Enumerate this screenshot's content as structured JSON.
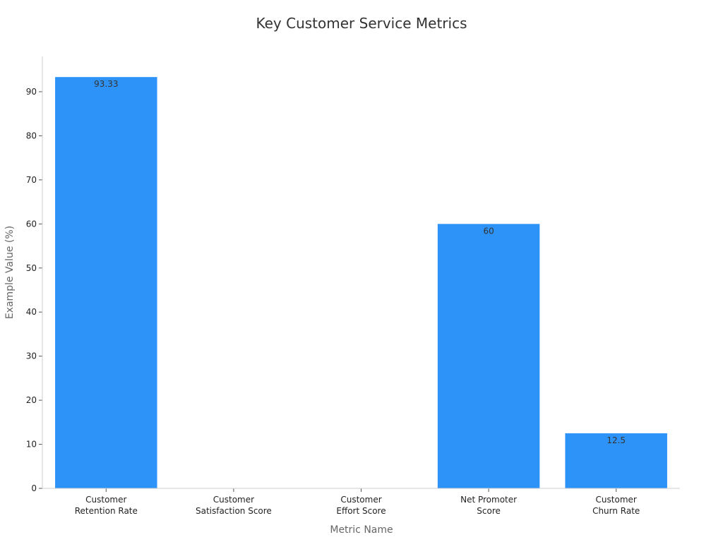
{
  "chart_data": {
    "type": "bar",
    "title": "Key Customer Service Metrics",
    "xlabel": "Metric Name",
    "ylabel": "Example Value (%)",
    "categories": [
      [
        "Customer",
        "Retention Rate"
      ],
      [
        "Customer",
        "Satisfaction Score"
      ],
      [
        "Customer",
        "Effort Score"
      ],
      [
        "Net Promoter",
        "Score"
      ],
      [
        "Customer",
        "Churn Rate"
      ]
    ],
    "values": [
      93.33,
      null,
      null,
      60,
      12.5
    ],
    "data_labels": [
      "93.33",
      "",
      "",
      "60",
      "12.5"
    ],
    "yticks": [
      0,
      10,
      20,
      30,
      40,
      50,
      60,
      70,
      80,
      90
    ],
    "ylim": [
      0,
      98
    ],
    "bar_color": "#2E93F9",
    "grid": false,
    "legend": "none"
  }
}
